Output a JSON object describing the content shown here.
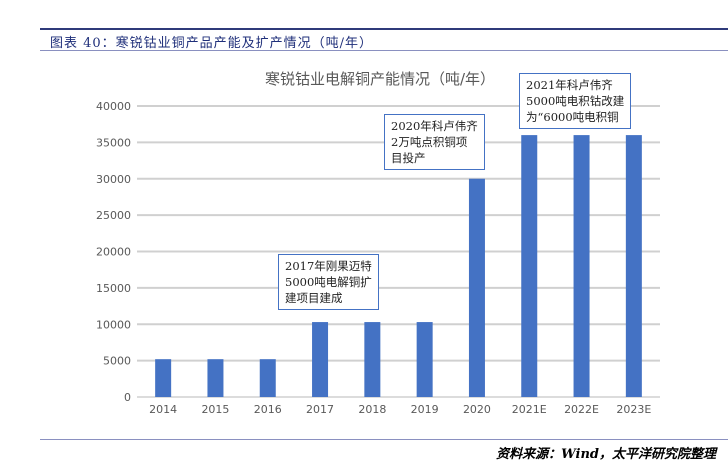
{
  "figure_title": "图表 40：寒锐钴业铜产品产能及扩产情况（吨/年）",
  "source": "资料来源：Wind，太平洋研究院整理",
  "chart_data": {
    "type": "bar",
    "title": "寒锐钴业电解铜产能情况（吨/年）",
    "xlabel": "",
    "ylabel": "",
    "ylim": [
      0,
      40000
    ],
    "yticks": [
      0,
      5000,
      10000,
      15000,
      20000,
      25000,
      30000,
      35000,
      40000
    ],
    "grid": true,
    "categories": [
      "2014",
      "2015",
      "2016",
      "2017",
      "2018",
      "2019",
      "2020",
      "2021E",
      "2022E",
      "2023E"
    ],
    "values": [
      5200,
      5200,
      5200,
      10300,
      10300,
      10300,
      30000,
      36000,
      36000,
      36000
    ],
    "bar_color": "#4472c4",
    "annotations": [
      {
        "lines": [
          "2017年刚果迈特",
          "5000吨电解铜扩",
          "建项目建成"
        ]
      },
      {
        "lines": [
          "2020年科卢伟齐",
          "2万吨点积铜项",
          "目投产"
        ]
      },
      {
        "lines": [
          "2021年科卢伟齐",
          "5000吨电积钴改建",
          "为“6000吨电积铜"
        ]
      }
    ]
  }
}
